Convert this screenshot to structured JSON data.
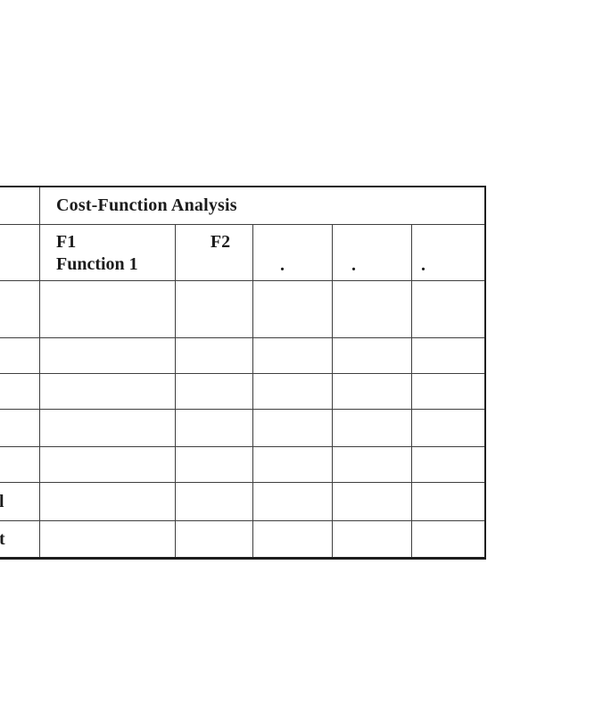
{
  "table": {
    "title": "Cost-Function Analysis",
    "header": {
      "f1": "F1\nFunction 1",
      "f2": "F2",
      "continuation_dots": [
        ".",
        ".",
        "."
      ]
    },
    "row_label_fragments": {
      "row6": "l",
      "row7": "t"
    },
    "colors": {
      "grid_line": "#3f3f3f",
      "outer_border": "#1e1e1e",
      "text": "#1c1c1c",
      "background": "#ffffff"
    }
  }
}
